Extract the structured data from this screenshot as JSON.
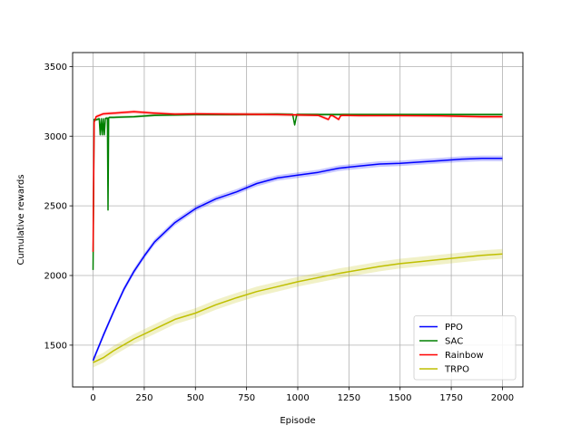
{
  "chart_data": {
    "type": "line",
    "title": "",
    "xlabel": "Episode",
    "ylabel": "Cumulative rewards",
    "xlim": [
      -100,
      2100
    ],
    "ylim": [
      1200,
      3600
    ],
    "xticks": [
      0,
      250,
      500,
      750,
      1000,
      1250,
      1500,
      1750,
      2000
    ],
    "yticks": [
      1500,
      2000,
      2500,
      3000,
      3500
    ],
    "xtick_labels": [
      "0",
      "250",
      "500",
      "750",
      "1000",
      "1250",
      "1500",
      "1750",
      "2000"
    ],
    "ytick_labels": [
      "1500",
      "2000",
      "2500",
      "3000",
      "3500"
    ],
    "grid": true,
    "legend_position": "lower-right",
    "series": [
      {
        "name": "PPO",
        "color": "#0000ff",
        "band": 20,
        "x": [
          0,
          25,
          50,
          100,
          150,
          200,
          250,
          300,
          400,
          500,
          600,
          700,
          800,
          900,
          1000,
          1100,
          1200,
          1300,
          1400,
          1500,
          1600,
          1700,
          1800,
          1900,
          2000
        ],
        "y": [
          1390,
          1480,
          1570,
          1740,
          1900,
          2030,
          2140,
          2240,
          2380,
          2480,
          2550,
          2600,
          2660,
          2700,
          2720,
          2740,
          2770,
          2785,
          2800,
          2805,
          2815,
          2825,
          2835,
          2840,
          2840
        ]
      },
      {
        "name": "SAC",
        "color": "#008000",
        "band": 10,
        "x": [
          0,
          5,
          10,
          30,
          35,
          40,
          45,
          50,
          55,
          60,
          70,
          73,
          76,
          80,
          100,
          200,
          300,
          500,
          700,
          900,
          975,
          985,
          995,
          1100,
          1300,
          1500,
          1700,
          1900,
          2000
        ],
        "y": [
          2040,
          3120,
          3115,
          3125,
          3010,
          3125,
          3010,
          3125,
          3010,
          3128,
          3130,
          2470,
          3132,
          3135,
          3135,
          3140,
          3150,
          3155,
          3155,
          3158,
          3155,
          3080,
          3155,
          3155,
          3155,
          3155,
          3155,
          3155,
          3155
        ]
      },
      {
        "name": "Rainbow",
        "color": "#ff0000",
        "band": 12,
        "x": [
          0,
          5,
          15,
          50,
          100,
          200,
          300,
          400,
          500,
          700,
          900,
          1100,
          1150,
          1160,
          1170,
          1200,
          1210,
          1220,
          1300,
          1500,
          1700,
          1900,
          2000
        ],
        "y": [
          2170,
          3100,
          3140,
          3160,
          3165,
          3175,
          3165,
          3158,
          3160,
          3158,
          3155,
          3150,
          3120,
          3148,
          3148,
          3120,
          3148,
          3150,
          3148,
          3148,
          3146,
          3140,
          3140
        ]
      },
      {
        "name": "TRPO",
        "color": "#bfbf00",
        "band": 35,
        "x": [
          0,
          50,
          100,
          200,
          300,
          400,
          500,
          600,
          700,
          800,
          900,
          1000,
          1100,
          1200,
          1300,
          1400,
          1500,
          1600,
          1700,
          1800,
          1900,
          2000
        ],
        "y": [
          1375,
          1410,
          1460,
          1545,
          1615,
          1685,
          1730,
          1790,
          1840,
          1885,
          1920,
          1955,
          1985,
          2015,
          2040,
          2065,
          2085,
          2100,
          2115,
          2130,
          2145,
          2155
        ]
      }
    ]
  }
}
